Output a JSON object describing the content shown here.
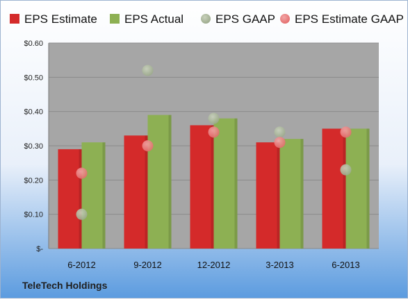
{
  "chart_data": {
    "type": "bar",
    "categories": [
      "6-2012",
      "9-2012",
      "12-2012",
      "3-2013",
      "6-2013"
    ],
    "series": [
      {
        "name": "EPS Estimate",
        "kind": "bar",
        "color": "#D42A2A",
        "values": [
          0.29,
          0.33,
          0.36,
          0.31,
          0.35
        ]
      },
      {
        "name": "EPS Actual",
        "kind": "bar",
        "color": "#8DB053",
        "values": [
          0.31,
          0.39,
          0.38,
          0.32,
          0.35
        ]
      },
      {
        "name": "EPS GAAP",
        "kind": "scatter",
        "color": "#9AA88A",
        "values": [
          0.1,
          0.52,
          0.38,
          0.34,
          0.23
        ]
      },
      {
        "name": "EPS Estimate GAAP",
        "kind": "scatter",
        "color": "#E36A6A",
        "values": [
          0.22,
          0.3,
          0.34,
          0.31,
          0.34
        ]
      }
    ],
    "ylim": [
      0,
      0.6
    ],
    "yticks": [
      0,
      0.1,
      0.2,
      0.3,
      0.4,
      0.5,
      0.6
    ],
    "ytick_labels": [
      "$-",
      "$0.10",
      "$0.20",
      "$0.30",
      "$0.40",
      "$0.50",
      "$0.60"
    ],
    "grid": true,
    "legend_position": "top"
  },
  "company": "TeleTech Holdings",
  "colors": {
    "plot_background": "#A6A6A6",
    "page_gradient_top": "#FFFFFF",
    "page_gradient_bottom": "#5B9BDF",
    "gridline": "#8A8A8A"
  }
}
